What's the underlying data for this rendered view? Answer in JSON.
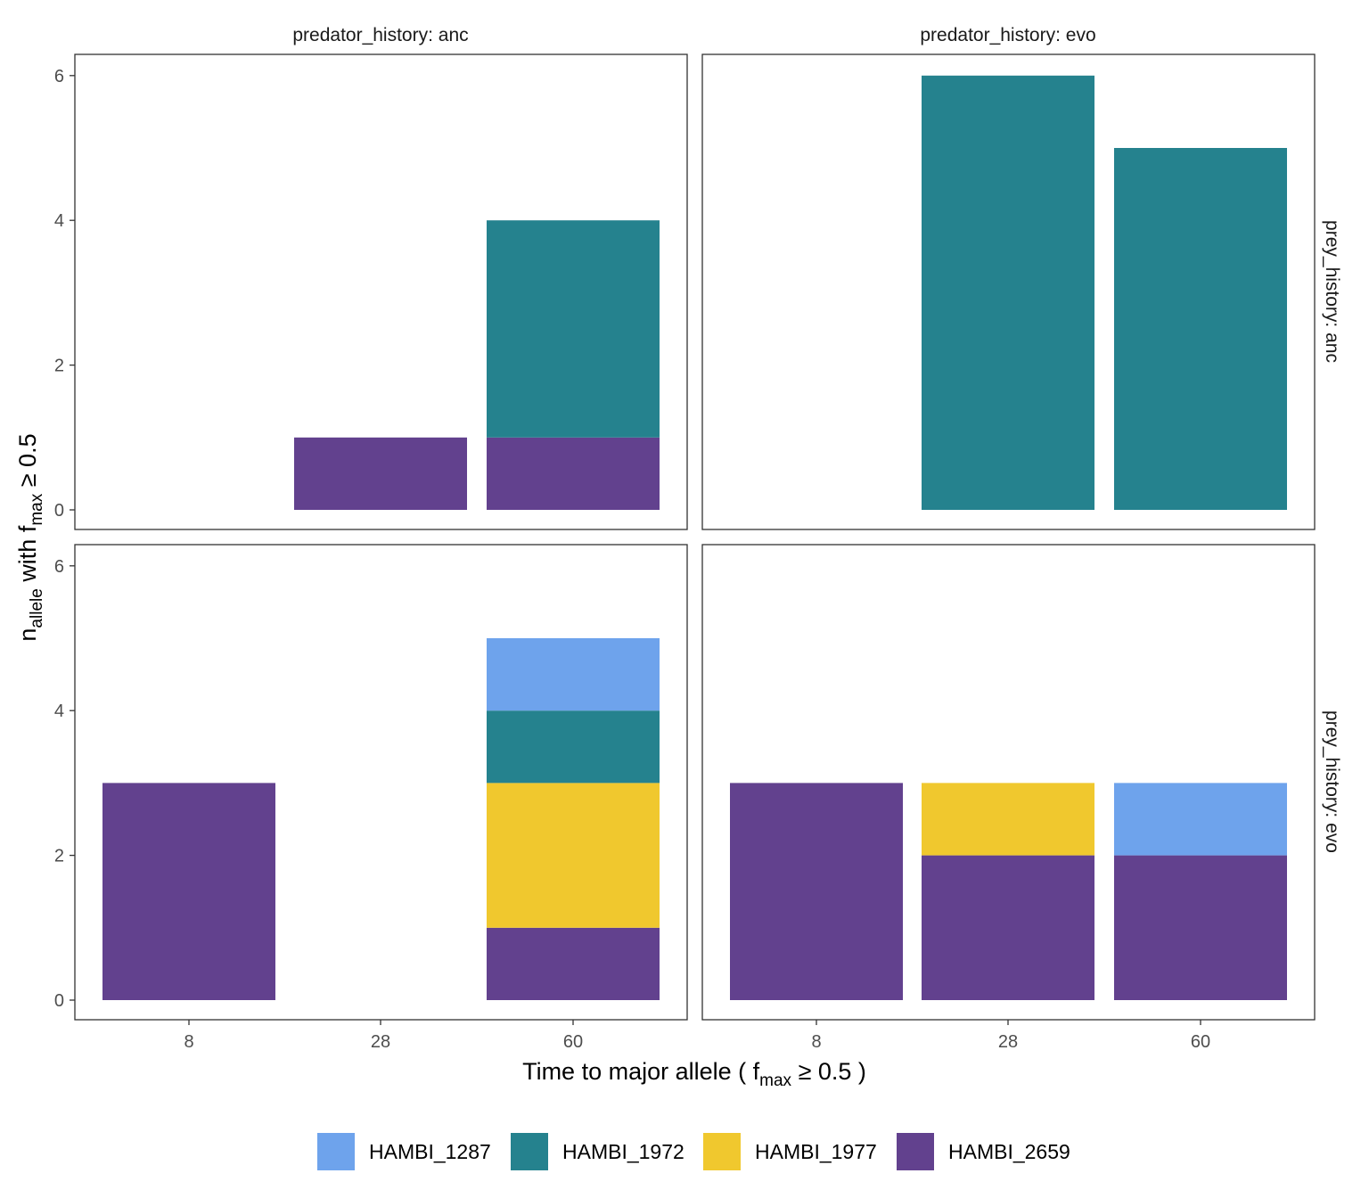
{
  "chart_data": {
    "type": "bar",
    "stacked": true,
    "facet_cols_var": "predator_history",
    "facet_rows_var": "prey_history",
    "col_labels": [
      "predator_history: anc",
      "predator_history: evo"
    ],
    "row_labels": [
      "prey_history: anc",
      "prey_history: evo"
    ],
    "categories": [
      "8",
      "28",
      "60"
    ],
    "ylim": [
      0,
      6
    ],
    "yticks": [
      0,
      2,
      4,
      6
    ],
    "grid": false,
    "legend_position": "bottom",
    "xlabel": {
      "main": "Time to major allele ( f",
      "sub": "max",
      "tail": " ≥ 0.5 )"
    },
    "ylabel": {
      "main": "n",
      "sub1": "allele",
      "mid": " with f",
      "sub2": "max",
      "tail": " ≥ 0.5"
    },
    "series": [
      {
        "name": "HAMBI_1287",
        "color": "#6ea3ec"
      },
      {
        "name": "HAMBI_1972",
        "color": "#25828e"
      },
      {
        "name": "HAMBI_1977",
        "color": "#f0c82e"
      },
      {
        "name": "HAMBI_2659",
        "color": "#62418e"
      }
    ],
    "stack_order_bottom_to_top": [
      "HAMBI_2659",
      "HAMBI_1977",
      "HAMBI_1972",
      "HAMBI_1287"
    ],
    "panels": [
      {
        "row": 0,
        "col": 0,
        "values": {
          "HAMBI_1287": [
            0,
            0,
            0
          ],
          "HAMBI_1972": [
            0,
            0,
            3
          ],
          "HAMBI_1977": [
            0,
            0,
            0
          ],
          "HAMBI_2659": [
            0,
            1,
            1
          ]
        }
      },
      {
        "row": 0,
        "col": 1,
        "values": {
          "HAMBI_1287": [
            0,
            0,
            0
          ],
          "HAMBI_1972": [
            0,
            6,
            5
          ],
          "HAMBI_1977": [
            0,
            0,
            0
          ],
          "HAMBI_2659": [
            0,
            0,
            0
          ]
        }
      },
      {
        "row": 1,
        "col": 0,
        "values": {
          "HAMBI_1287": [
            0,
            0,
            1
          ],
          "HAMBI_1972": [
            0,
            0,
            1
          ],
          "HAMBI_1977": [
            0,
            0,
            2
          ],
          "HAMBI_2659": [
            3,
            0,
            1
          ]
        }
      },
      {
        "row": 1,
        "col": 1,
        "values": {
          "HAMBI_1287": [
            0,
            0,
            1
          ],
          "HAMBI_1972": [
            0,
            0,
            0
          ],
          "HAMBI_1977": [
            0,
            1,
            0
          ],
          "HAMBI_2659": [
            3,
            2,
            2
          ]
        }
      }
    ]
  }
}
